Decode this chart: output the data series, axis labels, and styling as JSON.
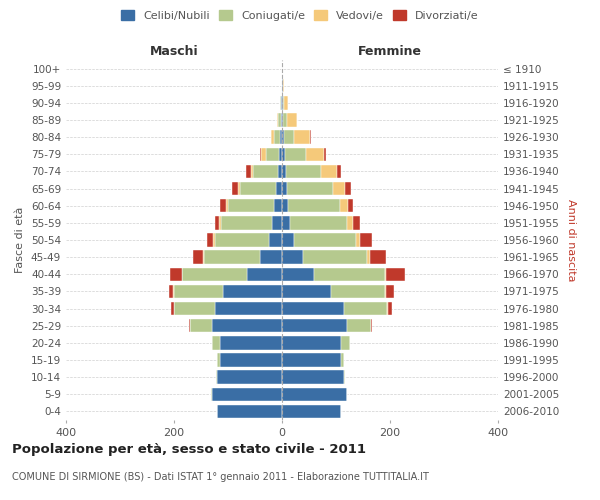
{
  "age_groups": [
    "0-4",
    "5-9",
    "10-14",
    "15-19",
    "20-24",
    "25-29",
    "30-34",
    "35-39",
    "40-44",
    "45-49",
    "50-54",
    "55-59",
    "60-64",
    "65-69",
    "70-74",
    "75-79",
    "80-84",
    "85-89",
    "90-94",
    "95-99",
    "100+"
  ],
  "birth_years": [
    "2006-2010",
    "2001-2005",
    "1996-2000",
    "1991-1995",
    "1986-1990",
    "1981-1985",
    "1976-1980",
    "1971-1975",
    "1966-1970",
    "1961-1965",
    "1956-1960",
    "1951-1955",
    "1946-1950",
    "1941-1945",
    "1936-1940",
    "1931-1935",
    "1926-1930",
    "1921-1925",
    "1916-1920",
    "1911-1915",
    "≤ 1910"
  ],
  "maschi_celibi": [
    120,
    130,
    120,
    115,
    115,
    130,
    125,
    110,
    65,
    40,
    25,
    18,
    15,
    12,
    8,
    5,
    3,
    2,
    1,
    0,
    0
  ],
  "maschi_coniugati": [
    0,
    1,
    2,
    5,
    15,
    40,
    75,
    90,
    120,
    105,
    100,
    95,
    85,
    65,
    45,
    25,
    12,
    5,
    2,
    0,
    0
  ],
  "maschi_vedovi": [
    0,
    0,
    0,
    0,
    0,
    0,
    0,
    1,
    1,
    2,
    2,
    3,
    4,
    5,
    5,
    8,
    5,
    3,
    1,
    0,
    0
  ],
  "maschi_divorziati": [
    0,
    0,
    0,
    0,
    0,
    2,
    5,
    8,
    22,
    18,
    12,
    8,
    10,
    10,
    8,
    2,
    1,
    0,
    0,
    0,
    0
  ],
  "femmine_nubili": [
    110,
    120,
    115,
    110,
    110,
    120,
    115,
    90,
    60,
    38,
    22,
    15,
    12,
    10,
    8,
    5,
    3,
    2,
    1,
    1,
    0
  ],
  "femmine_coniugate": [
    0,
    1,
    2,
    5,
    15,
    45,
    80,
    100,
    130,
    120,
    115,
    105,
    95,
    85,
    65,
    40,
    20,
    8,
    2,
    0,
    0
  ],
  "femmine_vedove": [
    0,
    0,
    0,
    0,
    0,
    0,
    1,
    2,
    3,
    5,
    8,
    12,
    15,
    22,
    28,
    32,
    28,
    18,
    8,
    2,
    0
  ],
  "femmine_divorziate": [
    0,
    0,
    0,
    0,
    0,
    2,
    8,
    15,
    35,
    30,
    22,
    12,
    10,
    10,
    8,
    4,
    2,
    0,
    0,
    0,
    0
  ],
  "colors": {
    "celibi": "#3a6ea5",
    "coniugati": "#b5c98e",
    "vedovi": "#f5c97a",
    "divorziati": "#c0392b"
  },
  "xlim": 400,
  "title": "Popolazione per età, sesso e stato civile - 2011",
  "subtitle": "COMUNE DI SIRMIONE (BS) - Dati ISTAT 1° gennaio 2011 - Elaborazione TUTTITALIA.IT",
  "ylabel_left": "Fasce di età",
  "ylabel_right": "Anni di nascita",
  "xlabel_maschi": "Maschi",
  "xlabel_femmine": "Femmine",
  "bg_color": "#ffffff",
  "grid_color": "#cccccc"
}
